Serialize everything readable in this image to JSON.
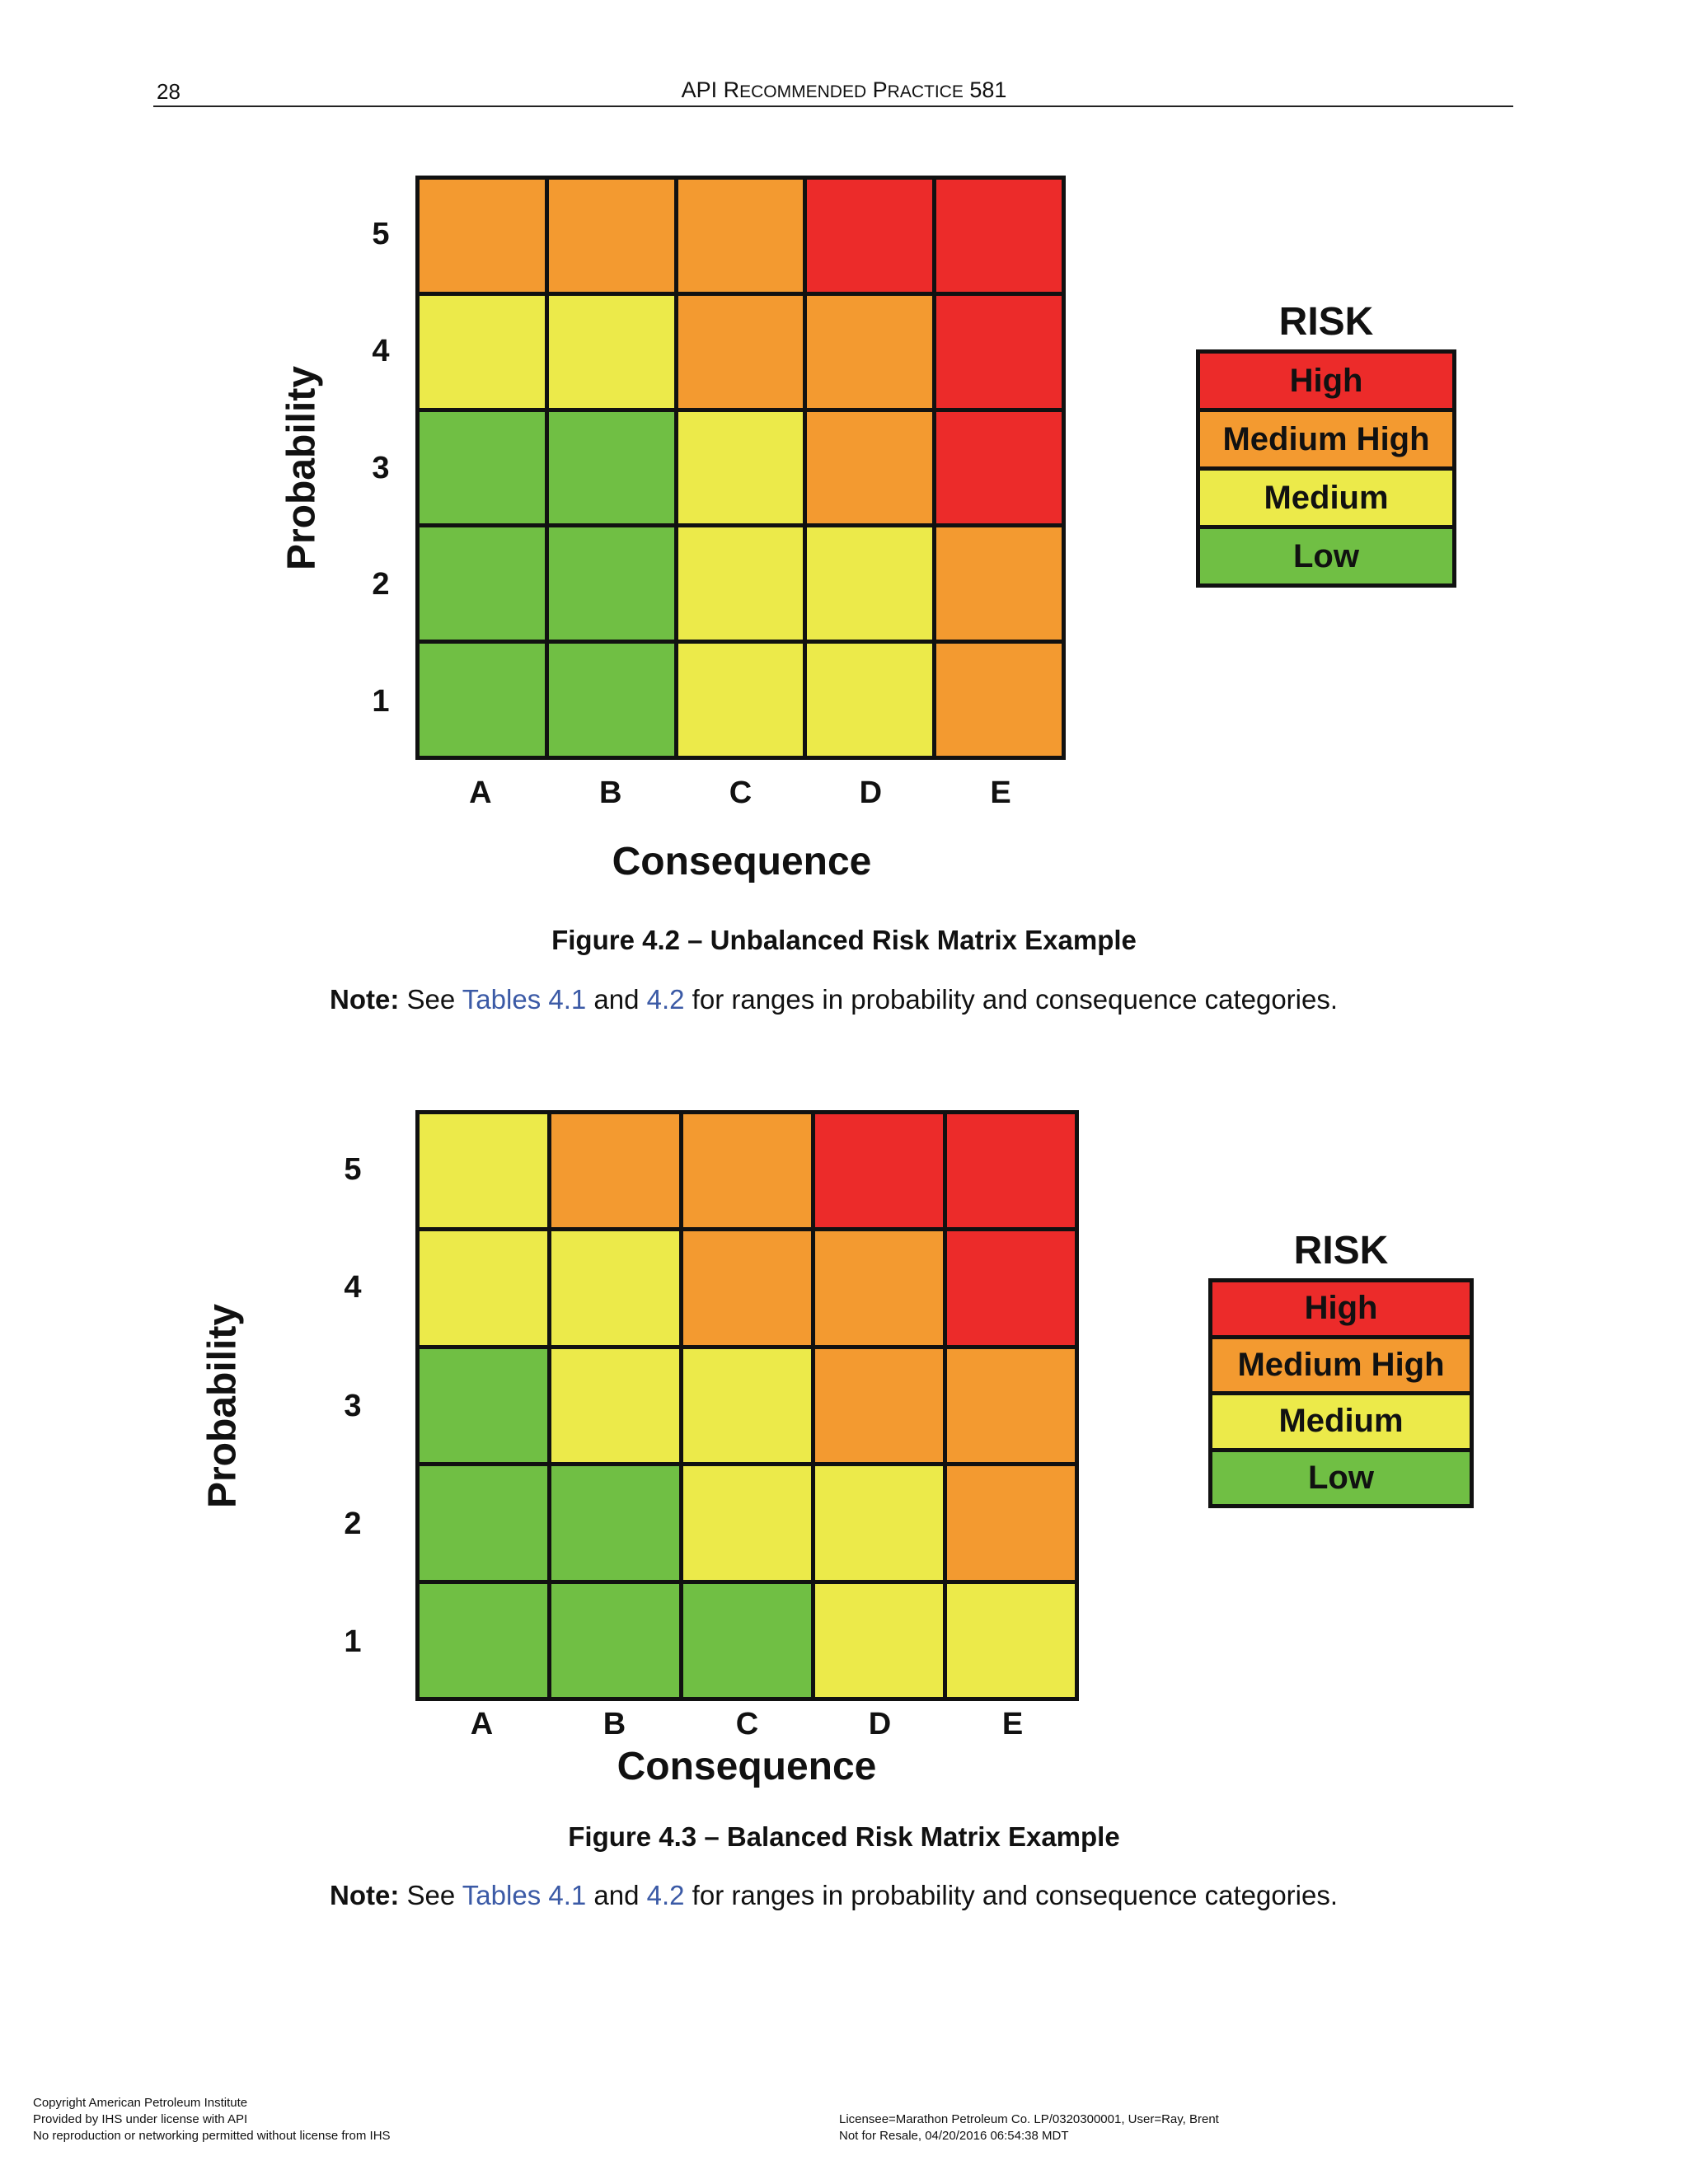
{
  "header": {
    "page_number": "28",
    "title_prefix_1": "API R",
    "title_sc_1": "ECOMMENDED",
    "title_mid": " P",
    "title_sc_2": "RACTICE",
    "title_suffix": " 581"
  },
  "colors": {
    "High": "#ec2b2a",
    "Medium High": "#f39a30",
    "Medium": "#ecea4a",
    "Low": "#70bf44"
  },
  "figures": [
    {
      "y_title": "Probability",
      "x_title": "Consequence",
      "y_ticks": [
        "5",
        "4",
        "3",
        "2",
        "1"
      ],
      "x_ticks": [
        "A",
        "B",
        "C",
        "D",
        "E"
      ],
      "rows": [
        [
          "Medium High",
          "Medium High",
          "Medium High",
          "High",
          "High"
        ],
        [
          "Medium",
          "Medium",
          "Medium High",
          "Medium High",
          "High"
        ],
        [
          "Low",
          "Low",
          "Medium",
          "Medium High",
          "High"
        ],
        [
          "Low",
          "Low",
          "Medium",
          "Medium",
          "Medium High"
        ],
        [
          "Low",
          "Low",
          "Medium",
          "Medium",
          "Medium High"
        ]
      ],
      "legend_title": "RISK",
      "legend": [
        "High",
        "Medium High",
        "Medium",
        "Low"
      ],
      "caption": "Figure 4.2 – Unbalanced Risk Matrix Example",
      "note": {
        "label": "Note:",
        "text_1": " See ",
        "link_1": "Tables 4.1",
        "text_2": " and ",
        "link_2": "4.2",
        "text_3": " for ranges in probability and consequence categories."
      }
    },
    {
      "y_title": "Probability",
      "x_title": "Consequence",
      "y_ticks": [
        "5",
        "4",
        "3",
        "2",
        "1"
      ],
      "x_ticks": [
        "A",
        "B",
        "C",
        "D",
        "E"
      ],
      "rows": [
        [
          "Medium",
          "Medium High",
          "Medium High",
          "High",
          "High"
        ],
        [
          "Medium",
          "Medium",
          "Medium High",
          "Medium High",
          "High"
        ],
        [
          "Low",
          "Medium",
          "Medium",
          "Medium High",
          "Medium High"
        ],
        [
          "Low",
          "Low",
          "Medium",
          "Medium",
          "Medium High"
        ],
        [
          "Low",
          "Low",
          "Low",
          "Medium",
          "Medium"
        ]
      ],
      "legend_title": "RISK",
      "legend": [
        "High",
        "Medium High",
        "Medium",
        "Low"
      ],
      "caption": "Figure 4.3 – Balanced Risk Matrix Example",
      "note": {
        "label": "Note:",
        "text_1": " See ",
        "link_1": "Tables 4.1",
        "text_2": " and ",
        "link_2": "4.2",
        "text_3": " for ranges in probability and consequence categories."
      }
    }
  ],
  "footer": {
    "left": [
      "Copyright American Petroleum Institute",
      "Provided by IHS under license with API",
      "No reproduction or networking permitted without license from IHS"
    ],
    "right": [
      "Licensee=Marathon Petroleum Co. LP/0320300001, User=Ray, Brent",
      "Not for Resale, 04/20/2016 06:54:38 MDT"
    ]
  }
}
